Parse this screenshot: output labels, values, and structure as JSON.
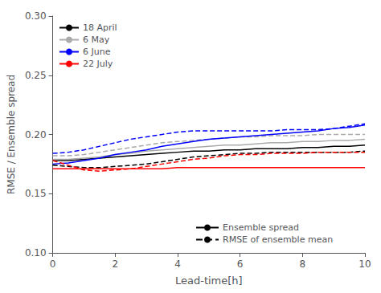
{
  "chart_data": {
    "type": "line",
    "title": "",
    "xlabel": "Lead-time[h]",
    "ylabel": "RMSE / Ensemble spread",
    "xlim": [
      0,
      10
    ],
    "ylim": [
      0.1,
      0.3
    ],
    "xticks": [
      0,
      2,
      4,
      6,
      8,
      10
    ],
    "yticks": [
      {
        "value": 0.1,
        "label": "0.10"
      },
      0.15,
      {
        "value": 0.2,
        "label": "0.20"
      },
      0.25,
      {
        "value": 0.3,
        "label": "0.30"
      }
    ],
    "grid": false,
    "legend": "upper left",
    "series": [
      {
        "name": "18 April",
        "color": "#000000",
        "line_style": "solid",
        "x": [
          0.0,
          0.5,
          1.0,
          1.5,
          2.0,
          2.5,
          3.0,
          3.5,
          4.0,
          4.5,
          5.0,
          5.5,
          6.0,
          6.5,
          7.0,
          7.5,
          8.0,
          8.5,
          9.0,
          9.5,
          10.0
        ],
        "values": [
          0.178,
          0.178,
          0.179,
          0.18,
          0.181,
          0.182,
          0.183,
          0.184,
          0.185,
          0.186,
          0.186,
          0.187,
          0.187,
          0.188,
          0.188,
          0.188,
          0.189,
          0.189,
          0.19,
          0.19,
          0.191
        ]
      },
      {
        "name": "18 April",
        "color": "#000000",
        "line_style": "dashed",
        "x": [
          0.0,
          0.5,
          1.0,
          1.5,
          2.0,
          2.5,
          3.0,
          3.5,
          4.0,
          4.5,
          5.0,
          5.5,
          6.0,
          6.5,
          7.0,
          7.5,
          8.0,
          8.5,
          9.0,
          9.5,
          10.0
        ],
        "values": [
          0.174,
          0.173,
          0.172,
          0.172,
          0.173,
          0.174,
          0.175,
          0.177,
          0.179,
          0.181,
          0.182,
          0.183,
          0.184,
          0.184,
          0.185,
          0.185,
          0.185,
          0.185,
          0.185,
          0.185,
          0.186
        ]
      },
      {
        "name": "6 May",
        "color": "#aaaaaa",
        "line_style": "solid",
        "x": [
          0.0,
          0.5,
          1.0,
          1.5,
          2.0,
          2.5,
          3.0,
          3.5,
          4.0,
          4.5,
          5.0,
          5.5,
          6.0,
          6.5,
          7.0,
          7.5,
          8.0,
          8.5,
          9.0,
          9.5,
          10.0
        ],
        "values": [
          0.179,
          0.179,
          0.18,
          0.181,
          0.183,
          0.184,
          0.186,
          0.187,
          0.188,
          0.189,
          0.19,
          0.191,
          0.191,
          0.192,
          0.193,
          0.193,
          0.194,
          0.194,
          0.195,
          0.195,
          0.196
        ]
      },
      {
        "name": "6 May",
        "color": "#aaaaaa",
        "line_style": "dashed",
        "x": [
          0.0,
          0.5,
          1.0,
          1.5,
          2.0,
          2.5,
          3.0,
          3.5,
          4.0,
          4.5,
          5.0,
          5.5,
          6.0,
          6.5,
          7.0,
          7.5,
          8.0,
          8.5,
          9.0,
          9.5,
          10.0
        ],
        "values": [
          0.182,
          0.182,
          0.183,
          0.185,
          0.187,
          0.189,
          0.191,
          0.193,
          0.194,
          0.195,
          0.196,
          0.197,
          0.198,
          0.198,
          0.199,
          0.199,
          0.199,
          0.2,
          0.2,
          0.2,
          0.2
        ]
      },
      {
        "name": "6 June",
        "color": "#0000ff",
        "line_style": "solid",
        "x": [
          0.0,
          0.5,
          1.0,
          1.5,
          2.0,
          2.5,
          3.0,
          3.5,
          4.0,
          4.5,
          5.0,
          5.5,
          6.0,
          6.5,
          7.0,
          7.5,
          8.0,
          8.5,
          9.0,
          9.5,
          10.0
        ],
        "values": [
          0.175,
          0.176,
          0.178,
          0.18,
          0.183,
          0.185,
          0.187,
          0.19,
          0.192,
          0.194,
          0.196,
          0.197,
          0.198,
          0.199,
          0.2,
          0.201,
          0.202,
          0.203,
          0.205,
          0.206,
          0.208
        ]
      },
      {
        "name": "6 June",
        "color": "#0000ff",
        "line_style": "dashed",
        "x": [
          0.0,
          0.5,
          1.0,
          1.5,
          2.0,
          2.5,
          3.0,
          3.5,
          4.0,
          4.5,
          5.0,
          5.5,
          6.0,
          6.5,
          7.0,
          7.5,
          8.0,
          8.5,
          9.0,
          9.5,
          10.0
        ],
        "values": [
          0.184,
          0.185,
          0.187,
          0.19,
          0.193,
          0.196,
          0.198,
          0.2,
          0.202,
          0.203,
          0.203,
          0.203,
          0.203,
          0.203,
          0.203,
          0.204,
          0.204,
          0.204,
          0.205,
          0.207,
          0.209
        ]
      },
      {
        "name": "22 July",
        "color": "#ff0000",
        "line_style": "solid",
        "x": [
          0.0,
          0.5,
          1.0,
          1.5,
          2.0,
          2.5,
          3.0,
          3.5,
          4.0,
          4.5,
          5.0,
          5.5,
          6.0,
          6.5,
          7.0,
          7.5,
          8.0,
          8.5,
          9.0,
          9.5,
          10.0
        ],
        "values": [
          0.171,
          0.171,
          0.171,
          0.171,
          0.171,
          0.171,
          0.171,
          0.171,
          0.172,
          0.172,
          0.172,
          0.172,
          0.172,
          0.172,
          0.172,
          0.172,
          0.172,
          0.172,
          0.172,
          0.172,
          0.172
        ]
      },
      {
        "name": "22 July",
        "color": "#ff0000",
        "line_style": "dashed",
        "x": [
          0.0,
          0.5,
          1.0,
          1.5,
          2.0,
          2.5,
          3.0,
          3.5,
          4.0,
          4.5,
          5.0,
          5.5,
          6.0,
          6.5,
          7.0,
          7.5,
          8.0,
          8.5,
          9.0,
          9.5,
          10.0
        ],
        "values": [
          0.178,
          0.174,
          0.17,
          0.169,
          0.17,
          0.171,
          0.173,
          0.175,
          0.177,
          0.179,
          0.18,
          0.182,
          0.183,
          0.183,
          0.184,
          0.184,
          0.184,
          0.185,
          0.185,
          0.185,
          0.185
        ]
      }
    ],
    "style_legend": [
      {
        "name": "Ensemble spread",
        "color": "#000000",
        "line_style": "solid"
      },
      {
        "name": "RMSE of ensemble mean",
        "color": "#000000",
        "line_style": "dashed"
      }
    ]
  }
}
